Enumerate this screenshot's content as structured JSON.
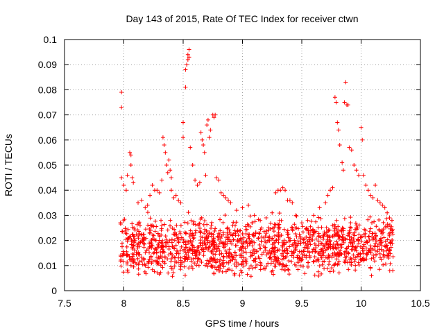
{
  "chart_data": {
    "type": "scatter",
    "title": "Day 143 of 2015, Rate Of TEC Index for receiver ctwn",
    "xlabel": "GPS time / hours",
    "ylabel": "ROTI / TECUs",
    "xlim": [
      7.5,
      10.5
    ],
    "ylim": [
      0,
      0.1
    ],
    "x_ticks": [
      7.5,
      8,
      8.5,
      9,
      9.5,
      10,
      10.5
    ],
    "x_tick_labels": [
      "7.5",
      "8",
      "8.5",
      "9",
      "9.5",
      "10",
      "10.5"
    ],
    "y_ticks": [
      0,
      0.01,
      0.02,
      0.03,
      0.04,
      0.05,
      0.06,
      0.07,
      0.08,
      0.09,
      0.1
    ],
    "y_tick_labels": [
      "0",
      "0.01",
      "0.02",
      "0.03",
      "0.04",
      "0.05",
      "0.06",
      "0.07",
      "0.08",
      "0.09",
      "0.1"
    ],
    "grid": true,
    "marker": "+",
    "color": "#ff0000",
    "series": [
      {
        "name": "ROTI",
        "points": [
          [
            7.98,
            0.079
          ],
          [
            7.98,
            0.073
          ],
          [
            7.98,
            0.045
          ],
          [
            8.0,
            0.042
          ],
          [
            8.02,
            0.04
          ],
          [
            8.03,
            0.046
          ],
          [
            8.05,
            0.055
          ],
          [
            8.06,
            0.054
          ],
          [
            8.06,
            0.05
          ],
          [
            8.07,
            0.045
          ],
          [
            8.08,
            0.043
          ],
          [
            8.12,
            0.035
          ],
          [
            8.15,
            0.036
          ],
          [
            8.18,
            0.033
          ],
          [
            8.2,
            0.034
          ],
          [
            8.22,
            0.038
          ],
          [
            8.24,
            0.042
          ],
          [
            8.26,
            0.04
          ],
          [
            8.28,
            0.04
          ],
          [
            8.3,
            0.039
          ],
          [
            8.32,
            0.044
          ],
          [
            8.33,
            0.061
          ],
          [
            8.34,
            0.058
          ],
          [
            8.35,
            0.055
          ],
          [
            8.36,
            0.05
          ],
          [
            8.37,
            0.047
          ],
          [
            8.38,
            0.052
          ],
          [
            8.39,
            0.048
          ],
          [
            8.4,
            0.045
          ],
          [
            8.4,
            0.04
          ],
          [
            8.42,
            0.037
          ],
          [
            8.44,
            0.038
          ],
          [
            8.46,
            0.036
          ],
          [
            8.48,
            0.035
          ],
          [
            8.5,
            0.061
          ],
          [
            8.5,
            0.067
          ],
          [
            8.52,
            0.081
          ],
          [
            8.52,
            0.088
          ],
          [
            8.53,
            0.09
          ],
          [
            8.54,
            0.092
          ],
          [
            8.54,
            0.094
          ],
          [
            8.55,
            0.096
          ],
          [
            8.55,
            0.093
          ],
          [
            8.56,
            0.057
          ],
          [
            8.58,
            0.05
          ],
          [
            8.6,
            0.044
          ],
          [
            8.62,
            0.042
          ],
          [
            8.64,
            0.043
          ],
          [
            8.65,
            0.063
          ],
          [
            8.66,
            0.06
          ],
          [
            8.67,
            0.058
          ],
          [
            8.68,
            0.055
          ],
          [
            8.69,
            0.046
          ],
          [
            8.7,
            0.066
          ],
          [
            8.71,
            0.068
          ],
          [
            8.72,
            0.061
          ],
          [
            8.73,
            0.064
          ],
          [
            8.75,
            0.07
          ],
          [
            8.76,
            0.069
          ],
          [
            8.77,
            0.07
          ],
          [
            8.78,
            0.045
          ],
          [
            8.8,
            0.044
          ],
          [
            8.82,
            0.039
          ],
          [
            8.84,
            0.038
          ],
          [
            8.86,
            0.037
          ],
          [
            8.88,
            0.036
          ],
          [
            8.9,
            0.035
          ],
          [
            8.95,
            0.032
          ],
          [
            9.0,
            0.033
          ],
          [
            9.05,
            0.034
          ],
          [
            9.1,
            0.03
          ],
          [
            9.15,
            0.028
          ],
          [
            9.2,
            0.029
          ],
          [
            9.25,
            0.031
          ],
          [
            9.28,
            0.039
          ],
          [
            9.3,
            0.04
          ],
          [
            9.32,
            0.04
          ],
          [
            9.34,
            0.041
          ],
          [
            9.36,
            0.04
          ],
          [
            9.38,
            0.036
          ],
          [
            9.4,
            0.036
          ],
          [
            9.42,
            0.035
          ],
          [
            9.45,
            0.03
          ],
          [
            9.5,
            0.027
          ],
          [
            9.55,
            0.028
          ],
          [
            9.6,
            0.03
          ],
          [
            9.65,
            0.033
          ],
          [
            9.7,
            0.035
          ],
          [
            9.72,
            0.038
          ],
          [
            9.74,
            0.04
          ],
          [
            9.76,
            0.041
          ],
          [
            9.78,
            0.077
          ],
          [
            9.79,
            0.075
          ],
          [
            9.8,
            0.067
          ],
          [
            9.81,
            0.064
          ],
          [
            9.82,
            0.058
          ],
          [
            9.84,
            0.051
          ],
          [
            9.85,
            0.048
          ],
          [
            9.86,
            0.075
          ],
          [
            9.87,
            0.083
          ],
          [
            9.88,
            0.074
          ],
          [
            9.89,
            0.074
          ],
          [
            9.9,
            0.057
          ],
          [
            9.92,
            0.056
          ],
          [
            9.94,
            0.05
          ],
          [
            9.96,
            0.048
          ],
          [
            9.98,
            0.046
          ],
          [
            10.0,
            0.065
          ],
          [
            10.01,
            0.06
          ],
          [
            10.02,
            0.046
          ],
          [
            10.04,
            0.042
          ],
          [
            10.06,
            0.04
          ],
          [
            10.08,
            0.038
          ],
          [
            10.1,
            0.037
          ],
          [
            10.12,
            0.042
          ],
          [
            10.14,
            0.036
          ],
          [
            10.16,
            0.035
          ],
          [
            10.18,
            0.034
          ],
          [
            10.2,
            0.033
          ],
          [
            10.22,
            0.031
          ],
          [
            10.24,
            0.029
          ],
          [
            10.26,
            0.028
          ]
        ],
        "dense_band": {
          "x_start": 7.97,
          "x_end": 10.27,
          "typical_range": [
            0.005,
            0.03
          ],
          "approx_count": 1400
        }
      }
    ]
  }
}
